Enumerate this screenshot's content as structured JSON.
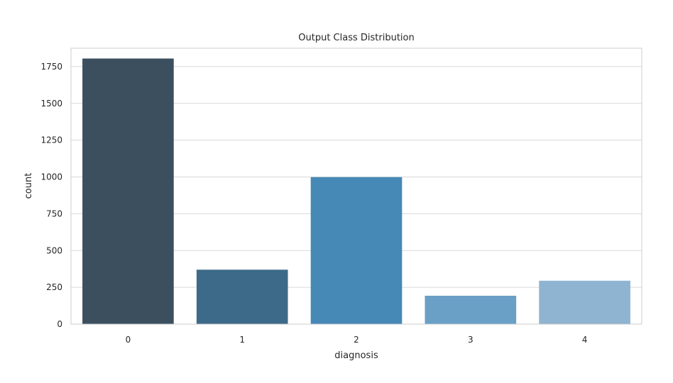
{
  "chart_data": {
    "type": "bar",
    "title": "Output Class Distribution",
    "xlabel": "diagnosis",
    "ylabel": "count",
    "categories": [
      "0",
      "1",
      "2",
      "3",
      "4"
    ],
    "values": [
      1805,
      370,
      999,
      193,
      295
    ],
    "ylim": [
      0,
      1875
    ],
    "yticks": [
      0,
      250,
      500,
      750,
      1000,
      1250,
      1500,
      1750
    ],
    "ytick_labels": [
      "0",
      "250",
      "500",
      "750",
      "1000",
      "1250",
      "1500",
      "1750"
    ],
    "grid": "horizontal",
    "colors": [
      "#3b4f5f",
      "#3e6a8a",
      "#4688b6",
      "#6a9fc6",
      "#8fb4d1"
    ],
    "gridline_color": "#d9d9d9",
    "frame_color": "#cccccc"
  }
}
